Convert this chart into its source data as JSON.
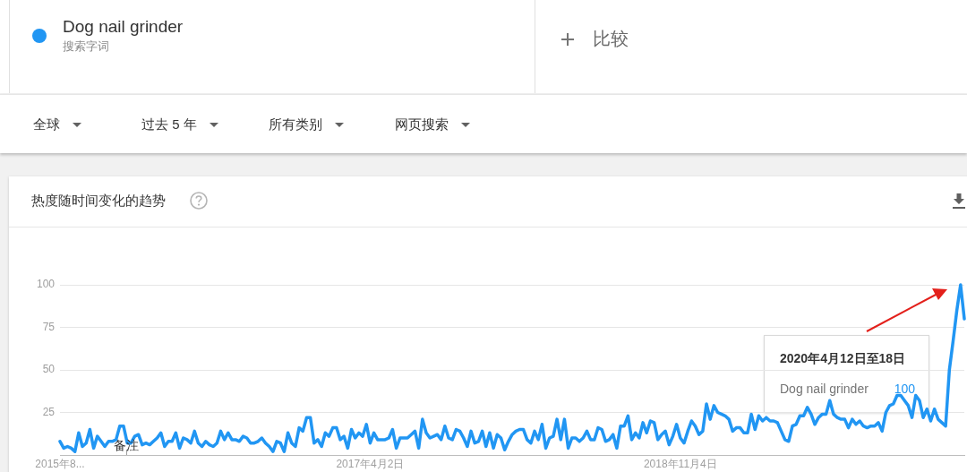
{
  "chart_data": {
    "type": "line",
    "title": "热度随时间变化的趋势",
    "annotations": [
      "搜索字词",
      "比较",
      "全球",
      "过去 5 年",
      "所有类别",
      "网页搜索",
      {
        "text": "备注",
        "x": "2016-01-01"
      },
      "2020年4月12日至18日",
      "100"
    ],
    "x": [
      "2015-08-30",
      "2015-09-06",
      "2015-09-13",
      "2015-09-20",
      "2015-09-27",
      "2015-10-04",
      "2015-10-11",
      "2015-10-18",
      "2015-10-25",
      "2015-11-01",
      "2015-11-08",
      "2015-11-15",
      "2015-11-22",
      "2015-11-29",
      "2015-12-06",
      "2015-12-13",
      "2015-12-20",
      "2015-12-27",
      "2016-01-03",
      "2016-01-10",
      "2016-01-17",
      "2016-01-24",
      "2016-01-31",
      "2016-02-07",
      "2016-02-14",
      "2016-02-21",
      "2016-02-28",
      "2016-03-06",
      "2016-03-13",
      "2016-03-20",
      "2016-03-27",
      "2016-04-03",
      "2016-04-10",
      "2016-04-17",
      "2016-04-24",
      "2016-05-01",
      "2016-05-08",
      "2016-05-15",
      "2016-05-22",
      "2016-05-29",
      "2016-06-05",
      "2016-06-12",
      "2016-06-19",
      "2016-06-26",
      "2016-07-03",
      "2016-07-10",
      "2016-07-17",
      "2016-07-24",
      "2016-07-31",
      "2016-08-07",
      "2016-08-14",
      "2016-08-21",
      "2016-08-28",
      "2016-09-04",
      "2016-09-11",
      "2016-09-18",
      "2016-09-25",
      "2016-10-02",
      "2016-10-09",
      "2016-10-16",
      "2016-10-23",
      "2016-10-30",
      "2016-11-06",
      "2016-11-13",
      "2016-11-20",
      "2016-11-27",
      "2016-12-04",
      "2016-12-11",
      "2016-12-18",
      "2016-12-25",
      "2017-01-01",
      "2017-01-08",
      "2017-01-15",
      "2017-01-22",
      "2017-01-29",
      "2017-02-05",
      "2017-02-12",
      "2017-02-19",
      "2017-02-26",
      "2017-03-05",
      "2017-03-12",
      "2017-03-19",
      "2017-03-26",
      "2017-04-02",
      "2017-04-09",
      "2017-04-16",
      "2017-04-23",
      "2017-04-30",
      "2017-05-07",
      "2017-05-14",
      "2017-05-21",
      "2017-05-28",
      "2017-06-04",
      "2017-06-11",
      "2017-06-18",
      "2017-06-25",
      "2017-07-02",
      "2017-07-09",
      "2017-07-16",
      "2017-07-23",
      "2017-07-30",
      "2017-08-06",
      "2017-08-13",
      "2017-08-20",
      "2017-08-27",
      "2017-09-03",
      "2017-09-10",
      "2017-09-17",
      "2017-09-24",
      "2017-10-01",
      "2017-10-08",
      "2017-10-15",
      "2017-10-22",
      "2017-10-29",
      "2017-11-05",
      "2017-11-12",
      "2017-11-19",
      "2017-11-26",
      "2017-12-03",
      "2017-12-10",
      "2017-12-17",
      "2017-12-24",
      "2017-12-31",
      "2018-01-07",
      "2018-01-14",
      "2018-01-21",
      "2018-01-28",
      "2018-02-04",
      "2018-02-11",
      "2018-02-18",
      "2018-02-25",
      "2018-03-04",
      "2018-03-11",
      "2018-03-18",
      "2018-03-25",
      "2018-04-01",
      "2018-04-08",
      "2018-04-15",
      "2018-04-22",
      "2018-04-29",
      "2018-05-06",
      "2018-05-13",
      "2018-05-20",
      "2018-05-27",
      "2018-06-03",
      "2018-06-10",
      "2018-06-17",
      "2018-06-24",
      "2018-07-01",
      "2018-07-08",
      "2018-07-15",
      "2018-07-22",
      "2018-07-29",
      "2018-08-05",
      "2018-08-12",
      "2018-08-19",
      "2018-08-26",
      "2018-09-02",
      "2018-09-09",
      "2018-09-16",
      "2018-09-23",
      "2018-09-30",
      "2018-10-07",
      "2018-10-14",
      "2018-10-21",
      "2018-10-28",
      "2018-11-04",
      "2018-11-11",
      "2018-11-18",
      "2018-11-25",
      "2018-12-02",
      "2018-12-09",
      "2018-12-16",
      "2018-12-23",
      "2018-12-30",
      "2019-01-06",
      "2019-01-13",
      "2019-01-20",
      "2019-01-27",
      "2019-02-03",
      "2019-02-10",
      "2019-02-17",
      "2019-02-24",
      "2019-03-03",
      "2019-03-10",
      "2019-03-17",
      "2019-03-24",
      "2019-03-31",
      "2019-04-07",
      "2019-04-14",
      "2019-04-21",
      "2019-04-28",
      "2019-05-05",
      "2019-05-12",
      "2019-05-19",
      "2019-05-26",
      "2019-06-02",
      "2019-06-09",
      "2019-06-16",
      "2019-06-23",
      "2019-06-30",
      "2019-07-07",
      "2019-07-14",
      "2019-07-21",
      "2019-07-28",
      "2019-08-04",
      "2019-08-11",
      "2019-08-18",
      "2019-08-25",
      "2019-09-01",
      "2019-09-08",
      "2019-09-15",
      "2019-09-22",
      "2019-09-29",
      "2019-10-06",
      "2019-10-13",
      "2019-10-20",
      "2019-10-27",
      "2019-11-03",
      "2019-11-10",
      "2019-11-17",
      "2019-11-24",
      "2019-12-01",
      "2019-12-08",
      "2019-12-15",
      "2019-12-22",
      "2019-12-29",
      "2020-01-05",
      "2020-01-12",
      "2020-01-19",
      "2020-01-26",
      "2020-02-02",
      "2020-02-09",
      "2020-02-16",
      "2020-02-23",
      "2020-03-01",
      "2020-03-08",
      "2020-03-15",
      "2020-03-22",
      "2020-03-29",
      "2020-04-05",
      "2020-04-12",
      "2020-04-19"
    ],
    "series": [
      {
        "name": "Dog nail grinder",
        "color": "#2196f3",
        "values": [
          8,
          4,
          5,
          4,
          2,
          13,
          5,
          7,
          15,
          4,
          11,
          8,
          5,
          8,
          8,
          9,
          17,
          17,
          7,
          7,
          11,
          12,
          6,
          7,
          6,
          8,
          10,
          13,
          5,
          8,
          8,
          13,
          4,
          10,
          9,
          7,
          14,
          7,
          5,
          8,
          6,
          5,
          7,
          14,
          9,
          13,
          9,
          9,
          8,
          11,
          10,
          7,
          7,
          8,
          10,
          7,
          5,
          2,
          8,
          7,
          2,
          13,
          7,
          5,
          16,
          14,
          22,
          22,
          7,
          9,
          5,
          13,
          11,
          16,
          16,
          9,
          11,
          4,
          15,
          10,
          13,
          11,
          18,
          7,
          13,
          9,
          9,
          9,
          10,
          15,
          4,
          10,
          10,
          10,
          12,
          14,
          4,
          21,
          13,
          10,
          11,
          12,
          9,
          17,
          10,
          9,
          15,
          14,
          10,
          5,
          14,
          7,
          8,
          14,
          5,
          13,
          4,
          12,
          10,
          3,
          8,
          12,
          14,
          15,
          15,
          9,
          7,
          14,
          9,
          18,
          4,
          10,
          11,
          21,
          9,
          21,
          4,
          10,
          10,
          8,
          10,
          14,
          9,
          9,
          16,
          15,
          8,
          9,
          12,
          4,
          17,
          17,
          23,
          9,
          13,
          10,
          19,
          13,
          20,
          19,
          9,
          12,
          14,
          6,
          11,
          18,
          10,
          7,
          14,
          20,
          17,
          12,
          14,
          30,
          21,
          29,
          25,
          24,
          23,
          21,
          14,
          16,
          16,
          13,
          13,
          24,
          15,
          23,
          20,
          22,
          20,
          20,
          19,
          14,
          9,
          8,
          17,
          18,
          23,
          23,
          28,
          24,
          18,
          22,
          24,
          24,
          32,
          24,
          22,
          21,
          21,
          16,
          21,
          18,
          20,
          17,
          16,
          17,
          17,
          19,
          14,
          25,
          29,
          30,
          35,
          35,
          32,
          29,
          22,
          35,
          32,
          22,
          27,
          20,
          27,
          21,
          19,
          17,
          50,
          67,
          85,
          100,
          80
        ]
      }
    ],
    "xlim": [
      "2015-08-30",
      "2020-04-19"
    ],
    "xticks": [
      {
        "value": "2015-08-30",
        "label": "2015年8..."
      },
      {
        "value": "2017-04-02",
        "label": "2017年4月2日"
      },
      {
        "value": "2018-11-04",
        "label": "2018年11月4日"
      }
    ],
    "ylim": [
      0,
      100
    ],
    "yticks": [
      25,
      50,
      75,
      100
    ],
    "grid": "y",
    "legend": "top left",
    "marker": "none",
    "line_style": "solid"
  }
}
